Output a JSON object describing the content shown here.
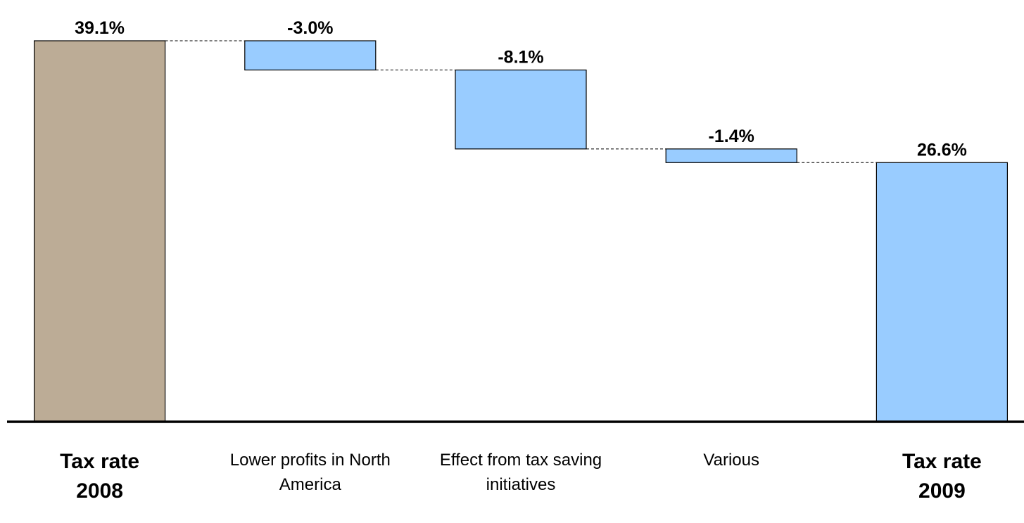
{
  "chart_data": {
    "type": "waterfall",
    "categories": [
      "Tax rate 2008",
      "Lower profits in North America",
      "Effect from tax saving initiatives",
      "Various",
      "Tax rate 2009"
    ],
    "values": [
      39.1,
      -3.0,
      -8.1,
      -1.4,
      26.6
    ],
    "value_labels": [
      "39.1%",
      "-3.0%",
      "-8.1%",
      "-1.4%",
      "26.6%"
    ],
    "totals": [
      true,
      false,
      false,
      false,
      true
    ],
    "colors": [
      "#bcac96",
      "#99ccff",
      "#99ccff",
      "#99ccff",
      "#99ccff"
    ]
  }
}
